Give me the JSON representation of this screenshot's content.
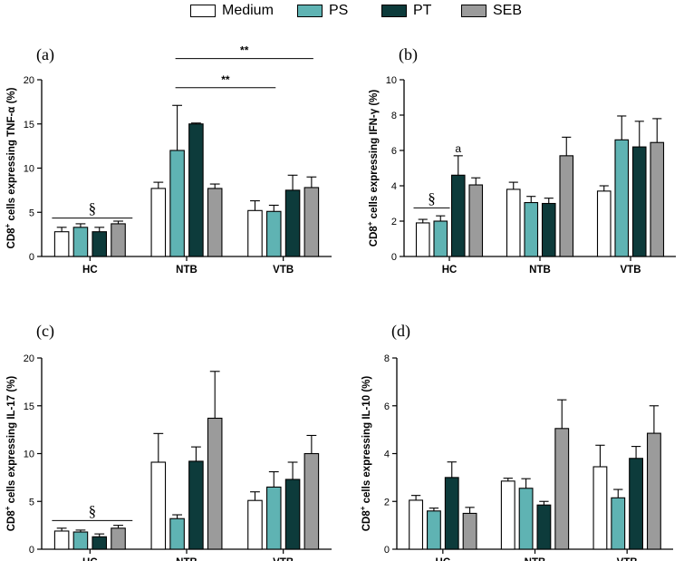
{
  "legend": {
    "items": [
      {
        "key": "medium",
        "label": "Medium",
        "color": "#ffffff"
      },
      {
        "key": "ps",
        "label": "PS",
        "color": "#5fb3b3"
      },
      {
        "key": "pt",
        "label": "PT",
        "color": "#0d3b3b"
      },
      {
        "key": "seb",
        "label": "SEB",
        "color": "#9b9b9b"
      }
    ]
  },
  "chart_data": [
    {
      "id": "a",
      "panel_label": "(a)",
      "type": "bar",
      "ylabel_prefix": "CD8",
      "ylabel_sup": "+",
      "ylabel_suffix": " cells expressing TNF-α (%)",
      "ylim": [
        0,
        20
      ],
      "yticks": [
        "0",
        "5",
        "10",
        "15",
        "20"
      ],
      "categories": [
        "HC",
        "NTB",
        "VTB"
      ],
      "series": [
        {
          "name": "Medium",
          "values": [
            2.8,
            7.7,
            5.2
          ],
          "errors": [
            0.5,
            0.7,
            1.1
          ]
        },
        {
          "name": "PS",
          "values": [
            3.3,
            12.0,
            5.1
          ],
          "errors": [
            0.4,
            5.1,
            0.7
          ]
        },
        {
          "name": "PT",
          "values": [
            2.8,
            15.0,
            7.5
          ],
          "errors": [
            0.5,
            0.1,
            1.7
          ]
        },
        {
          "name": "SEB",
          "values": [
            3.7,
            7.7,
            7.8
          ],
          "errors": [
            0.3,
            0.5,
            1.2
          ]
        }
      ],
      "annotations": {
        "section_symbol": "§",
        "brackets": [
          {
            "label": "**",
            "from": "NTB PS",
            "to": "VTB PS"
          },
          {
            "label": "**",
            "from": "NTB PS",
            "to": "VTB SEB"
          }
        ]
      }
    },
    {
      "id": "b",
      "panel_label": "(b)",
      "type": "bar",
      "ylabel_prefix": "CD8",
      "ylabel_sup": "+",
      "ylabel_suffix": " cells expressing IFN-γ (%)",
      "ylim": [
        0,
        10
      ],
      "yticks": [
        "0",
        "2",
        "4",
        "6",
        "8",
        "10"
      ],
      "categories": [
        "HC",
        "NTB",
        "VTB"
      ],
      "series": [
        {
          "name": "Medium",
          "values": [
            1.9,
            3.8,
            3.7
          ],
          "errors": [
            0.2,
            0.4,
            0.3
          ]
        },
        {
          "name": "PS",
          "values": [
            2.0,
            3.05,
            6.6
          ],
          "errors": [
            0.3,
            0.35,
            1.35
          ]
        },
        {
          "name": "PT",
          "values": [
            4.6,
            3.0,
            6.2
          ],
          "errors": [
            1.1,
            0.3,
            1.45
          ]
        },
        {
          "name": "SEB",
          "values": [
            4.05,
            5.7,
            6.45
          ],
          "errors": [
            0.4,
            1.05,
            1.35
          ]
        }
      ],
      "annotations": {
        "section_symbol": "§",
        "letter": "a"
      }
    },
    {
      "id": "c",
      "panel_label": "(c)",
      "type": "bar",
      "ylabel_prefix": "CD8",
      "ylabel_sup": "+",
      "ylabel_suffix": " cells expressing IL-17 (%)",
      "ylim": [
        0,
        20
      ],
      "yticks": [
        "0",
        "5",
        "10",
        "15",
        "20"
      ],
      "categories": [
        "HC",
        "NTB",
        "VTB"
      ],
      "series": [
        {
          "name": "Medium",
          "values": [
            1.9,
            9.1,
            5.1
          ],
          "errors": [
            0.3,
            3.0,
            0.9
          ]
        },
        {
          "name": "PS",
          "values": [
            1.8,
            3.2,
            6.5
          ],
          "errors": [
            0.2,
            0.4,
            1.6
          ]
        },
        {
          "name": "PT",
          "values": [
            1.3,
            9.2,
            7.3
          ],
          "errors": [
            0.3,
            1.5,
            1.8
          ]
        },
        {
          "name": "SEB",
          "values": [
            2.2,
            13.7,
            10.0
          ],
          "errors": [
            0.3,
            4.9,
            1.9
          ]
        }
      ],
      "annotations": {
        "section_symbol": "§"
      }
    },
    {
      "id": "d",
      "panel_label": "(d)",
      "type": "bar",
      "ylabel_prefix": "CD8",
      "ylabel_sup": "+",
      "ylabel_suffix": " cells expressing IL-10 (%)",
      "ylim": [
        0,
        8
      ],
      "yticks": [
        "0",
        "2",
        "4",
        "6",
        "8"
      ],
      "categories": [
        "HC",
        "NTB",
        "VTB"
      ],
      "series": [
        {
          "name": "Medium",
          "values": [
            2.05,
            2.85,
            3.45
          ],
          "errors": [
            0.2,
            0.12,
            0.9
          ]
        },
        {
          "name": "PS",
          "values": [
            1.6,
            2.55,
            2.15
          ],
          "errors": [
            0.12,
            0.4,
            0.35
          ]
        },
        {
          "name": "PT",
          "values": [
            3.0,
            1.85,
            3.8
          ],
          "errors": [
            0.65,
            0.15,
            0.5
          ]
        },
        {
          "name": "SEB",
          "values": [
            1.5,
            5.05,
            4.85
          ],
          "errors": [
            0.25,
            1.2,
            1.15
          ]
        }
      ]
    }
  ]
}
